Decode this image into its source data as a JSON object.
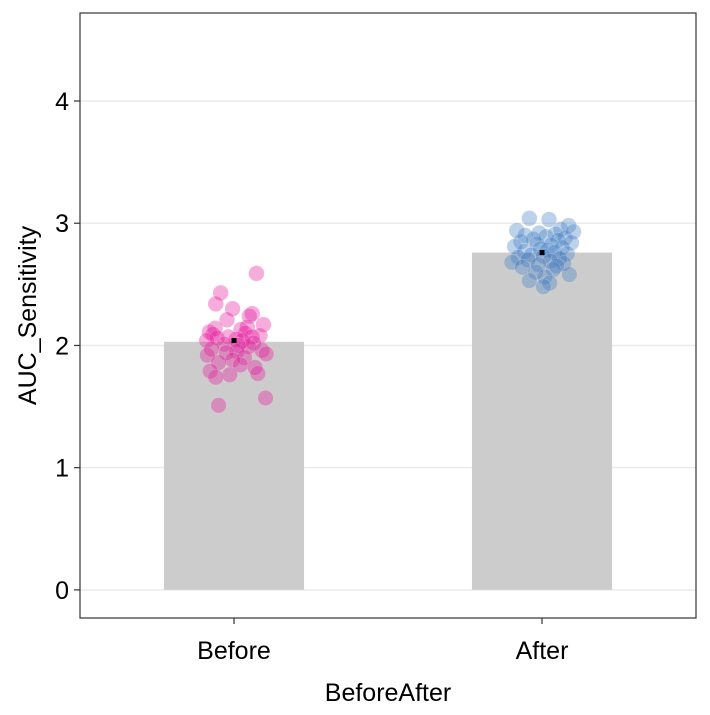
{
  "chart_data": {
    "type": "bar",
    "title": "",
    "xlabel": "BeforeAfter",
    "ylabel": "AUC_Sensitivity",
    "ylim": [
      -0.23,
      4.72
    ],
    "yticks": [
      "0",
      "1",
      "2",
      "3",
      "4"
    ],
    "categories": [
      "Before",
      "After"
    ],
    "values": [
      2.03,
      2.76
    ],
    "means": [
      2.04,
      2.76
    ],
    "grid": "horizontal major gridlines",
    "legend": "none",
    "colors": {
      "bar": "#cccccc",
      "points": [
        "#e6139a",
        "#3e7cc4"
      ],
      "mean_marker": "#000000",
      "gridline": "#ebebeb",
      "panel_border": "#333333"
    },
    "points": [
      {
        "category": "Before",
        "y": [
          2.59,
          2.43,
          2.34,
          2.3,
          2.26,
          2.24,
          2.21,
          2.17,
          2.15,
          2.14,
          2.13,
          2.11,
          2.1,
          2.09,
          2.08,
          2.07,
          2.07,
          2.06,
          2.05,
          2.04,
          2.04,
          2.02,
          2.01,
          2.0,
          1.99,
          1.97,
          1.96,
          1.95,
          1.94,
          1.93,
          1.92,
          1.9,
          1.88,
          1.86,
          1.84,
          1.82,
          1.79,
          1.77,
          1.76,
          1.74,
          1.57,
          1.51
        ],
        "jitter": [
          0.32,
          -0.19,
          -0.26,
          -0.02,
          0.26,
          0.22,
          -0.1,
          0.42,
          0.19,
          -0.27,
          0.1,
          -0.35,
          0.16,
          -0.3,
          0.37,
          -0.08,
          0.26,
          -0.24,
          0.03,
          0.12,
          -0.39,
          0.28,
          -0.14,
          0.06,
          0.21,
          -0.32,
          0.4,
          0.04,
          -0.11,
          0.46,
          -0.38,
          0.15,
          -0.02,
          -0.22,
          0.09,
          0.3,
          -0.34,
          0.34,
          -0.06,
          -0.26,
          0.45,
          -0.22
        ]
      },
      {
        "category": "After",
        "y": [
          3.04,
          3.03,
          2.98,
          2.95,
          2.94,
          2.93,
          2.92,
          2.91,
          2.9,
          2.89,
          2.88,
          2.87,
          2.86,
          2.85,
          2.84,
          2.83,
          2.82,
          2.81,
          2.8,
          2.79,
          2.78,
          2.77,
          2.76,
          2.75,
          2.74,
          2.73,
          2.72,
          2.71,
          2.7,
          2.69,
          2.68,
          2.67,
          2.66,
          2.65,
          2.64,
          2.62,
          2.6,
          2.58,
          2.56,
          2.53,
          2.51,
          2.48
        ],
        "jitter": [
          -0.18,
          0.1,
          0.38,
          0.27,
          -0.36,
          0.45,
          -0.04,
          0.19,
          -0.24,
          0.06,
          0.33,
          -0.12,
          0.23,
          -0.3,
          0.42,
          -0.07,
          0.13,
          -0.39,
          0.29,
          -0.02,
          0.08,
          -0.25,
          0.18,
          0.36,
          -0.15,
          0.02,
          -0.34,
          0.25,
          -0.2,
          0.12,
          -0.43,
          0.31,
          -0.05,
          0.21,
          -0.28,
          0.16,
          -0.09,
          0.39,
          0.04,
          -0.18,
          0.11,
          0.02
        ]
      }
    ]
  }
}
